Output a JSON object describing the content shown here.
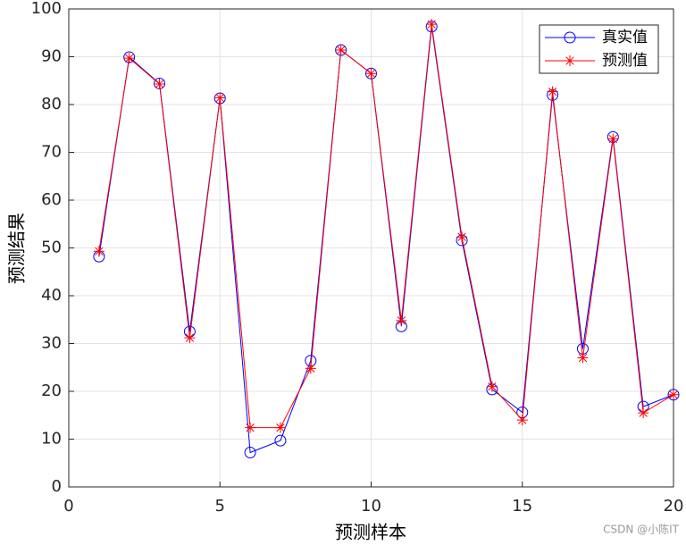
{
  "chart_data": {
    "type": "line",
    "xlabel": "预测样本",
    "ylabel": "预测结果",
    "x": [
      1,
      2,
      3,
      4,
      5,
      6,
      7,
      8,
      9,
      10,
      11,
      12,
      13,
      14,
      15,
      16,
      17,
      18,
      19,
      20
    ],
    "series": [
      {
        "name": "真实值",
        "color": "#0000ff",
        "marker": "o",
        "values": [
          48.2,
          89.9,
          84.4,
          32.5,
          81.3,
          7.2,
          9.7,
          26.4,
          91.4,
          86.5,
          33.6,
          96.3,
          51.6,
          20.4,
          15.6,
          82.0,
          28.9,
          73.2,
          16.8,
          19.3
        ]
      },
      {
        "name": "预测值",
        "color": "#ff0000",
        "marker": "*",
        "values": [
          49.3,
          89.7,
          84.3,
          31.2,
          81.4,
          12.4,
          12.4,
          24.8,
          91.4,
          86.5,
          34.8,
          96.8,
          52.3,
          21.0,
          14.0,
          82.7,
          27.0,
          72.8,
          15.5,
          19.3
        ]
      }
    ],
    "xlim": [
      0,
      20
    ],
    "xticks": [
      0,
      5,
      10,
      15,
      20
    ],
    "ylim": [
      0,
      100
    ],
    "yticks": [
      0,
      10,
      20,
      30,
      40,
      50,
      60,
      70,
      80,
      90,
      100
    ],
    "grid": true,
    "legend": "northeast",
    "watermark": "CSDN @小陈IT"
  }
}
